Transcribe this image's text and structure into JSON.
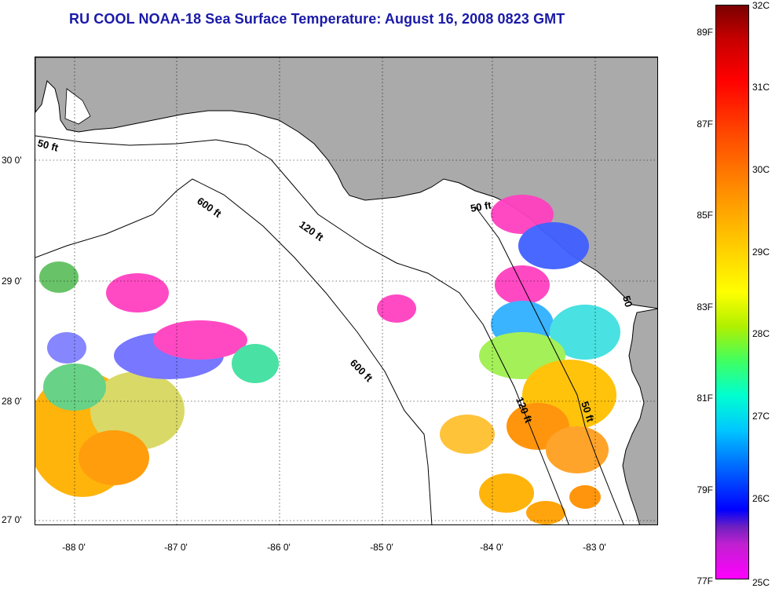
{
  "title": "RU COOL  NOAA-18  Sea Surface Temperature:  August 16, 2008 0823 GMT",
  "map": {
    "lat_labels": [
      "30 0'",
      "29 0'",
      "28 0'",
      "27 0'"
    ],
    "lon_labels": [
      "-88 0'",
      "-87 0'",
      "-86 0'",
      "-85 0'",
      "-84 0'",
      "-83 0'"
    ],
    "depth_labels": [
      "50 ft",
      "600 ft",
      "120 ft",
      "50 ft",
      "600 ft",
      "120 ft",
      "50 ft",
      "50"
    ],
    "colors": {
      "land": "#aaaaaa",
      "cloud": "#ffffff",
      "coast": "#000000"
    }
  },
  "colorbar": {
    "fahrenheit": [
      "89F",
      "87F",
      "85F",
      "83F",
      "81F",
      "79F",
      "77F"
    ],
    "celsius": [
      "32C",
      "31C",
      "30C",
      "29C",
      "28C",
      "27C",
      "26C",
      "25C"
    ]
  }
}
